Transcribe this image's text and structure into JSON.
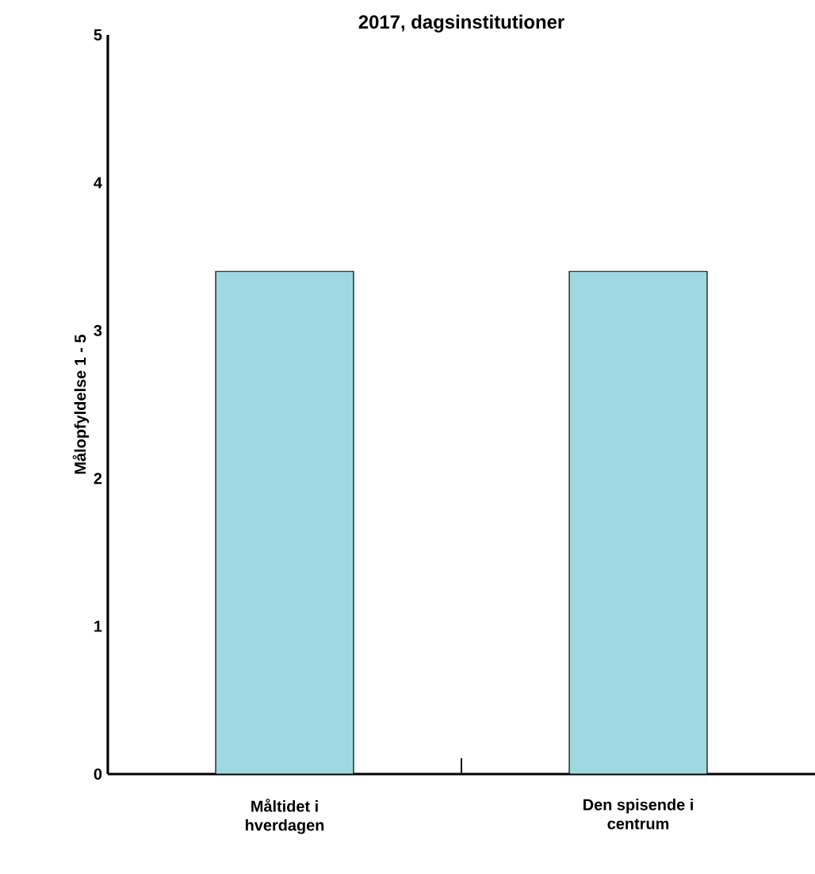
{
  "chart_data": {
    "type": "bar",
    "title": "2017, dagsinstitutioner",
    "ylabel": "Målopfyldelse 1 - 5",
    "categories": [
      "Måltidet i hverdagen",
      "Den spisende i centrum"
    ],
    "values": [
      3.4,
      3.4
    ],
    "color": "#a0d8e2",
    "ylim": [
      0,
      5
    ],
    "yticks": [
      0,
      1,
      2,
      3,
      4,
      5
    ],
    "grid": false
  }
}
